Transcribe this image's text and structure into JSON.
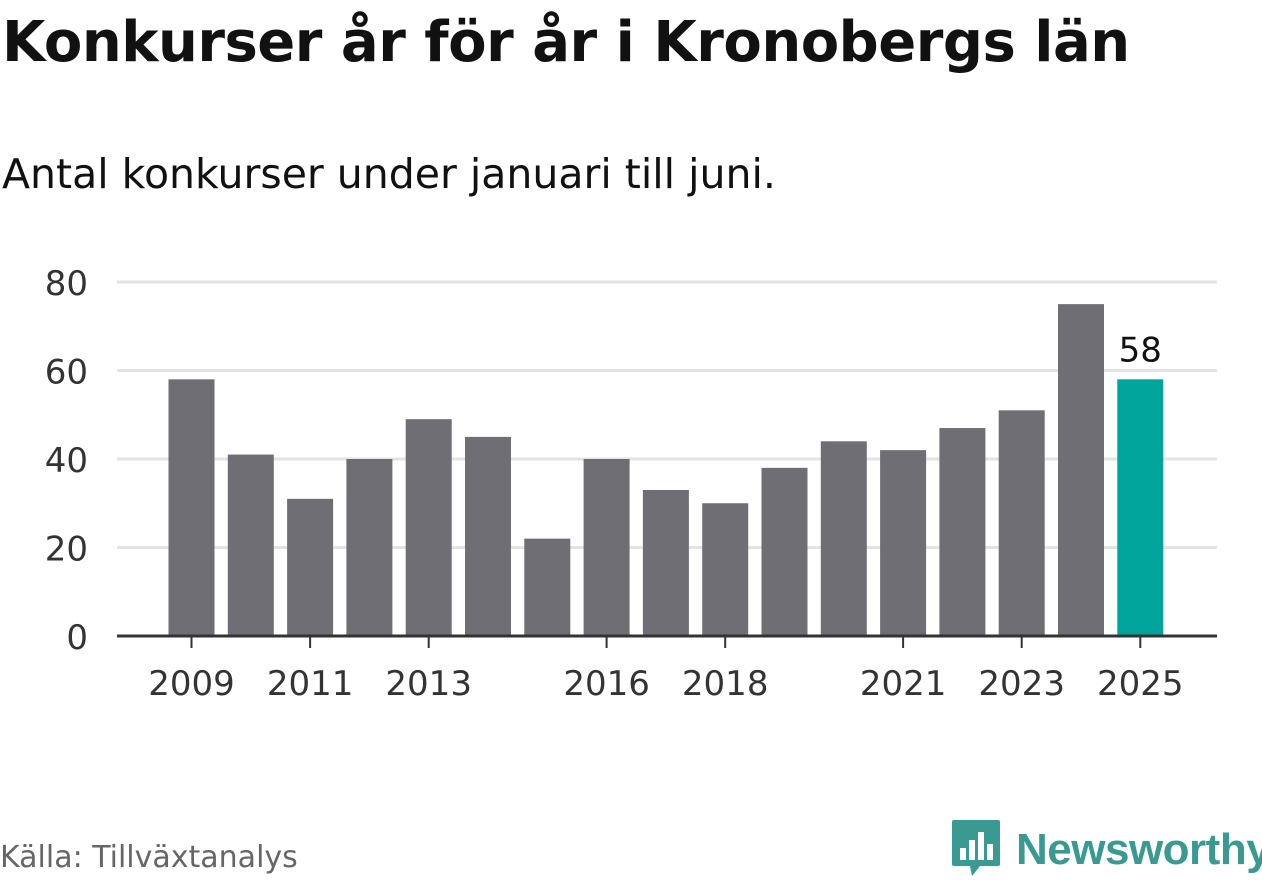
{
  "header": {
    "title": "Konkurser år för år i Kronobergs län",
    "subtitle": "Antal konkurser under januari till juni."
  },
  "footer": {
    "source": "Källa: Tillväxtanalys",
    "brand": "Newsworthy"
  },
  "icons": {
    "brand_logo": "newsworthy-logo-icon"
  },
  "colors": {
    "bar": "#6f6e74",
    "highlight": "#00a49a",
    "brand": "#3a9a92",
    "grid": "#e3e3e3",
    "axis": "#333333"
  },
  "chart_data": {
    "type": "bar",
    "categories": [
      "2009",
      "2010",
      "2011",
      "2012",
      "2013",
      "2014",
      "2015",
      "2016",
      "2017",
      "2018",
      "2019",
      "2020",
      "2021",
      "2022",
      "2023",
      "2024",
      "2025"
    ],
    "values": [
      58,
      41,
      31,
      40,
      49,
      45,
      22,
      40,
      33,
      30,
      38,
      44,
      42,
      47,
      51,
      75,
      58
    ],
    "x_tick_labels": [
      "2009",
      "2011",
      "2013",
      "2016",
      "2018",
      "2021",
      "2023",
      "2025"
    ],
    "y_ticks": [
      0,
      20,
      40,
      60,
      80
    ],
    "ylim": [
      0,
      80
    ],
    "grid": true,
    "highlight_category": "2025",
    "data_labels": [
      {
        "category": "2025",
        "text": "58"
      }
    ],
    "xlabel": "",
    "ylabel": ""
  }
}
